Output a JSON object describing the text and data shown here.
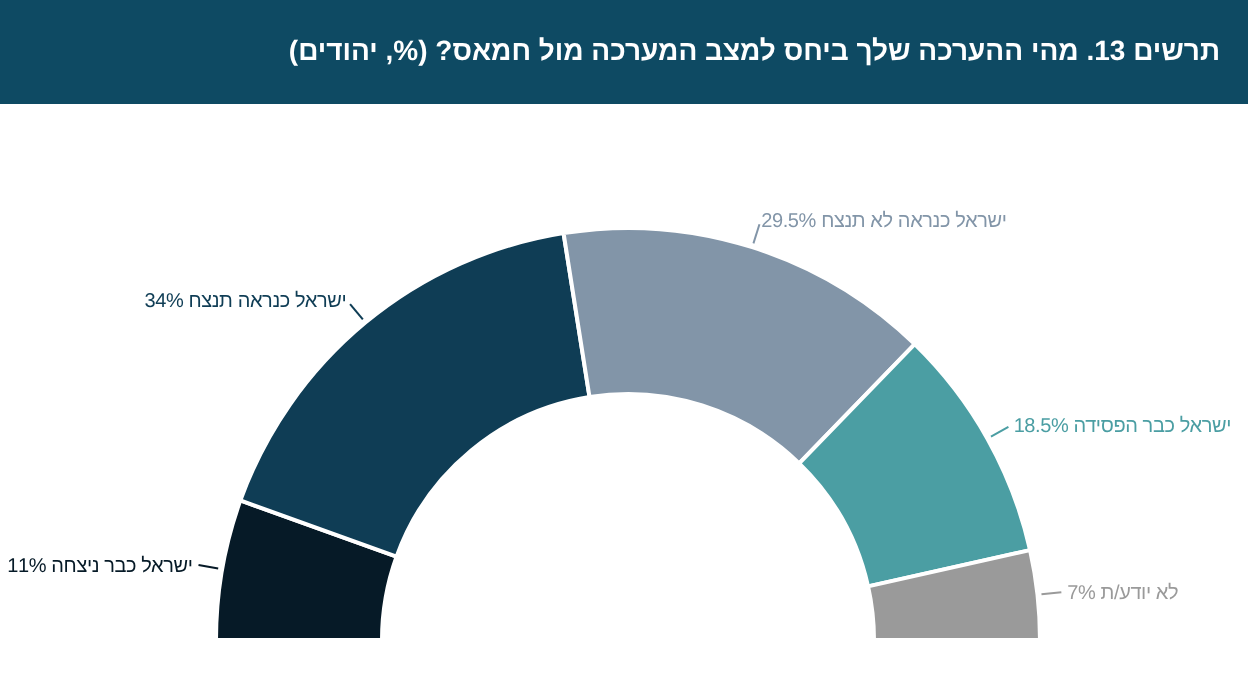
{
  "chart_data": {
    "type": "donut",
    "title": "תרשים 13. מהי ההערכה שלך ביחס למצב המערכה מול חמאס? (%, יהודים)",
    "categories": [
      "ישראל כבר ניצחה",
      "ישראל כנראה תנצח",
      "ישראל כנראה לא תנצח",
      "ישראל כבר הפסידה",
      "לא יודע/ת"
    ],
    "values": [
      11,
      34,
      29.5,
      18.5,
      7
    ],
    "value_labels": [
      "11%",
      "34%",
      "29.5%",
      "18.5%",
      "7%"
    ],
    "colors": [
      "#061a27",
      "#0f3d55",
      "#8295a8",
      "#4b9ea3",
      "#9a9a9a"
    ]
  }
}
